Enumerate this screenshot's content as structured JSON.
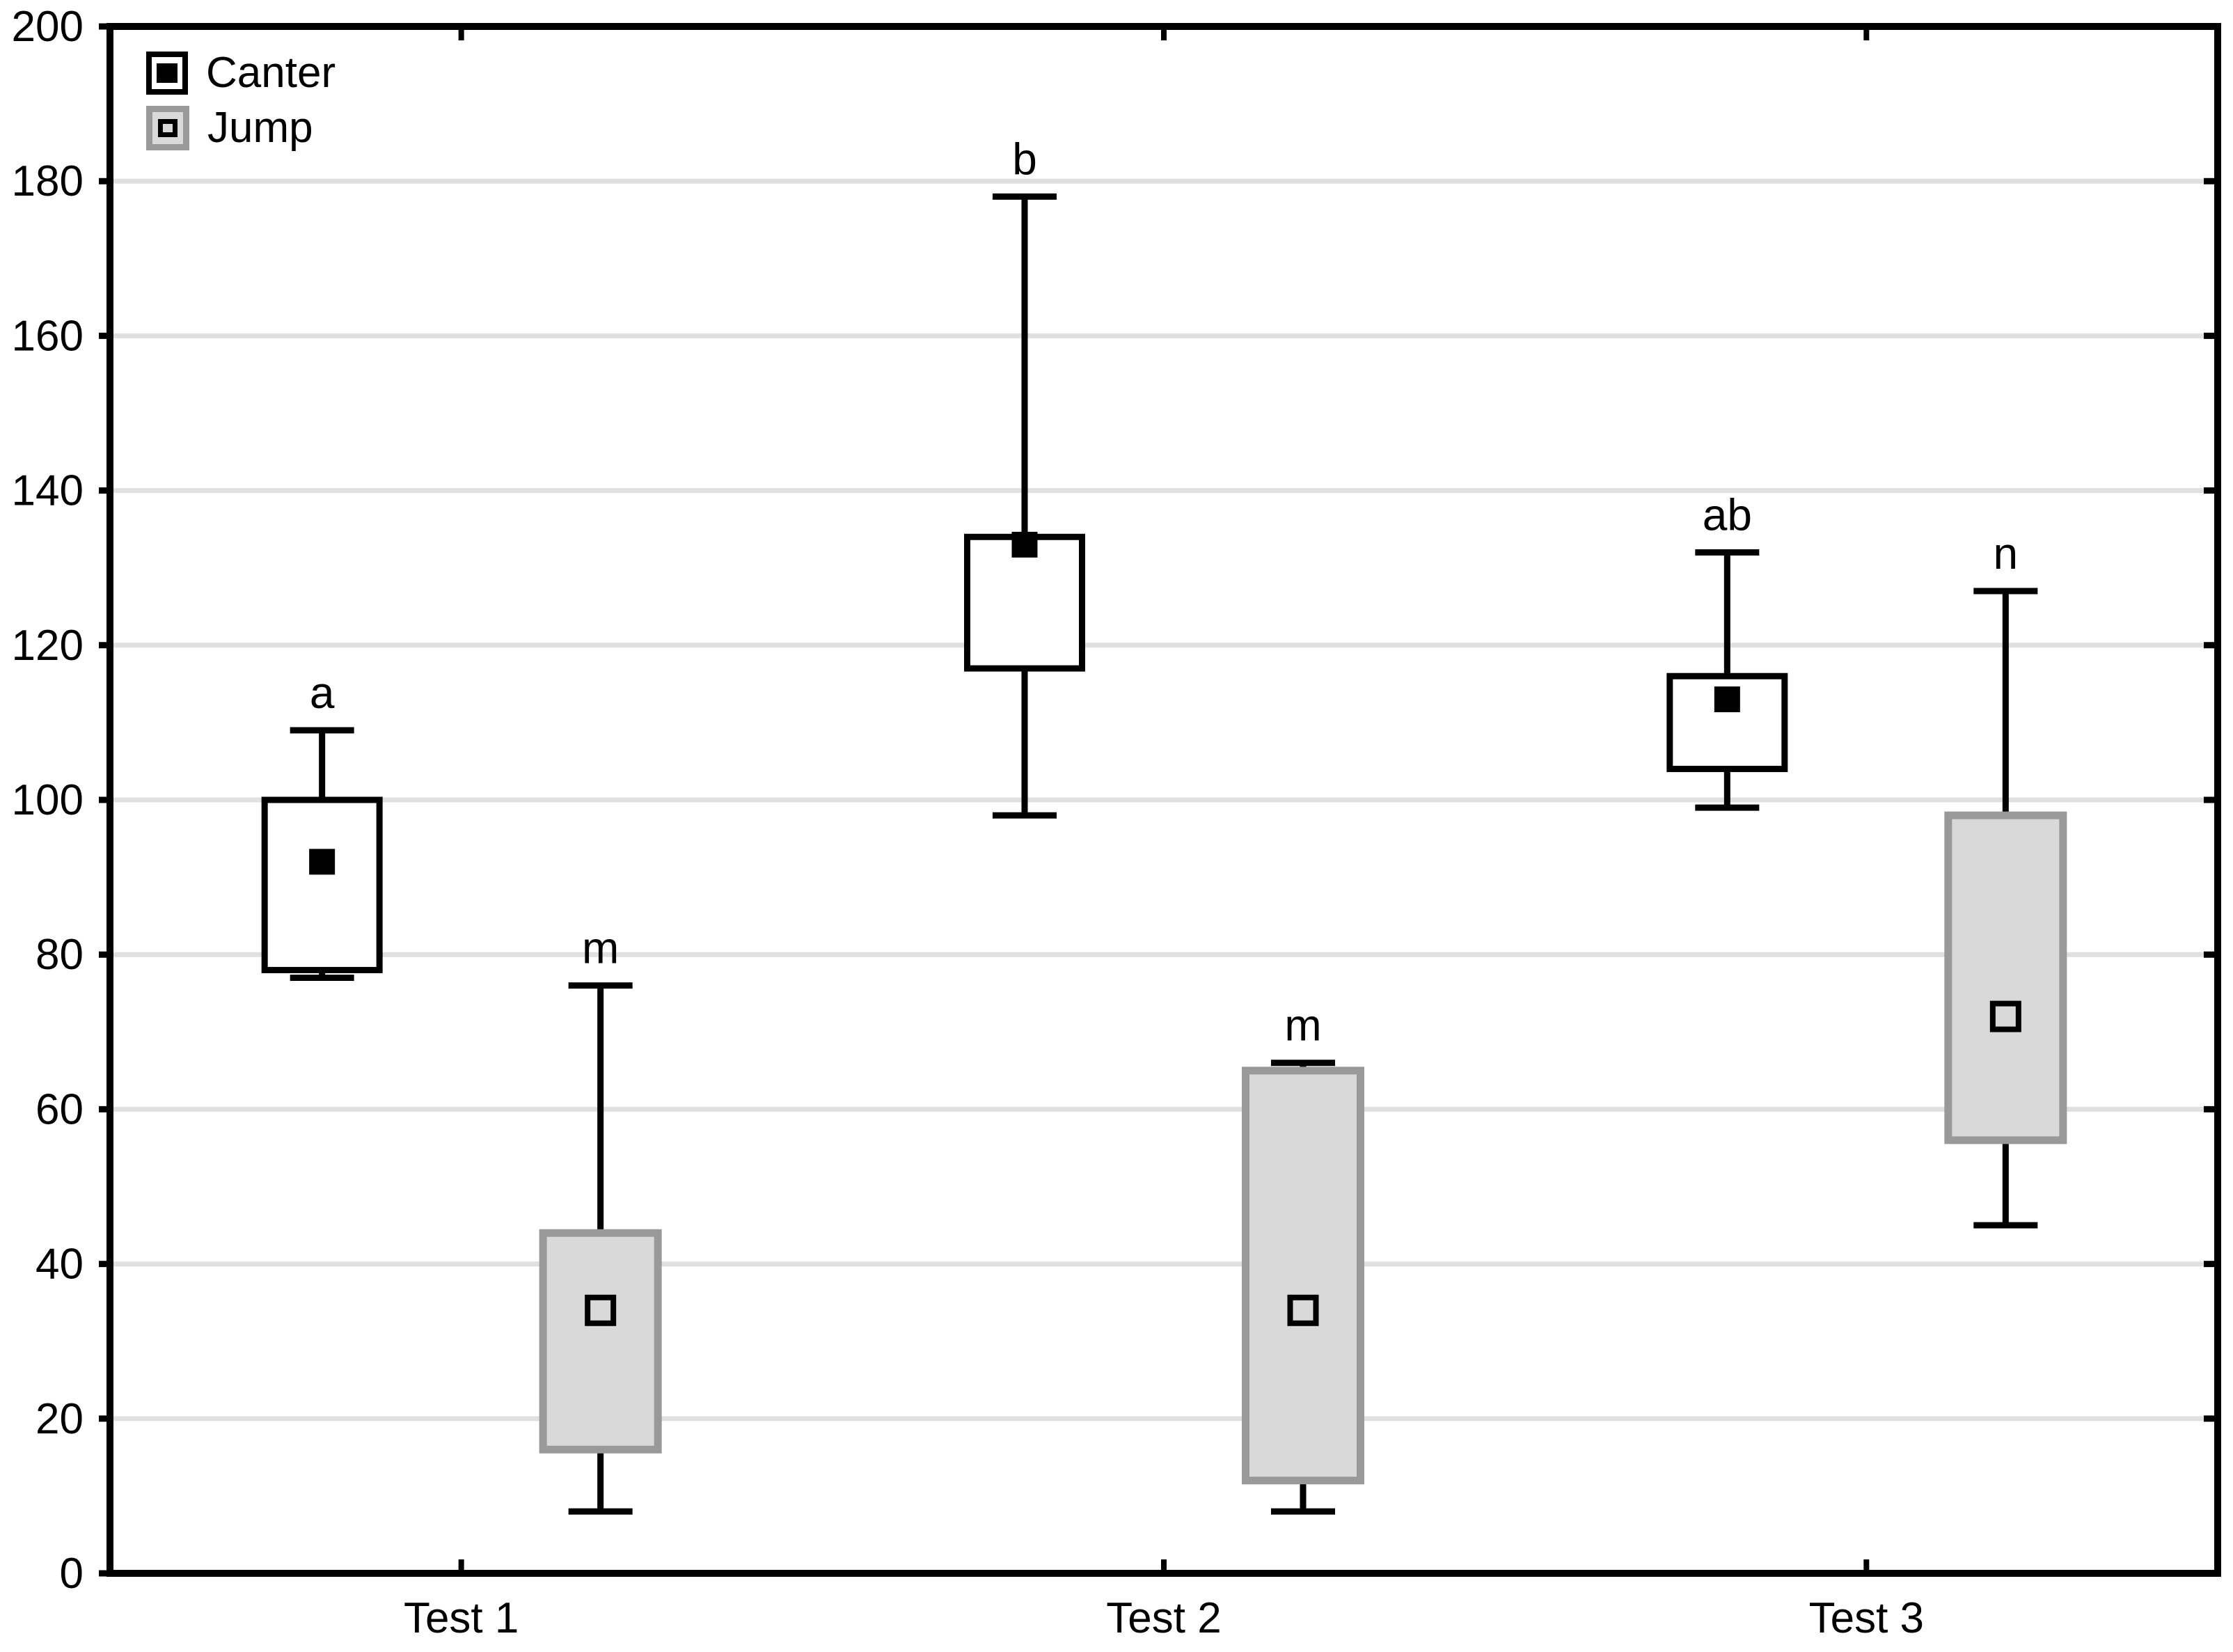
{
  "figure": {
    "background": "#ffffff"
  },
  "legend": {
    "position": "top-left-inside",
    "items": [
      {
        "label": "Canter"
      },
      {
        "label": "Jump"
      }
    ]
  },
  "chart_data": {
    "type": "boxplot",
    "title": "",
    "xlabel": "",
    "ylabel": "",
    "categories": [
      "Test 1",
      "Test 2",
      "Test 3"
    ],
    "y_axis": {
      "min": 0,
      "max": 200,
      "tick_step": 20,
      "tick_labels": [
        "0",
        "20",
        "40",
        "60",
        "80",
        "100",
        "120",
        "140",
        "160",
        "180",
        "200"
      ],
      "gridlines": true
    },
    "legend_entries": [
      "Canter",
      "Jump"
    ],
    "series": [
      {
        "name": "Canter",
        "box_style": {
          "fill": "#ffffff",
          "border": "#000000"
        },
        "marker_style": "filled-black-square",
        "points": [
          {
            "category": "Test 1",
            "whisker_low": 77,
            "q1": 78,
            "mean": 92,
            "q3": 100,
            "whisker_high": 109,
            "sig_label": "a"
          },
          {
            "category": "Test 2",
            "whisker_low": 98,
            "q1": 117,
            "mean": 133,
            "q3": 134,
            "whisker_high": 178,
            "sig_label": "b"
          },
          {
            "category": "Test 3",
            "whisker_low": 99,
            "q1": 104,
            "mean": 113,
            "q3": 116,
            "whisker_high": 132,
            "sig_label": "ab"
          }
        ]
      },
      {
        "name": "Jump",
        "box_style": {
          "fill": "#d9d9d9",
          "border": "#999999"
        },
        "marker_style": "open-square",
        "points": [
          {
            "category": "Test 1",
            "whisker_low": 8,
            "q1": 16,
            "mean": 34,
            "q3": 44,
            "whisker_high": 76,
            "sig_label": "m"
          },
          {
            "category": "Test 2",
            "whisker_low": 8,
            "q1": 12,
            "mean": 34,
            "q3": 65,
            "whisker_high": 66,
            "sig_label": "m"
          },
          {
            "category": "Test 3",
            "whisker_low": 45,
            "q1": 56,
            "mean": 72,
            "q3": 98,
            "whisker_high": 127,
            "sig_label": "n"
          }
        ]
      }
    ],
    "colors": {
      "background": "#ffffff",
      "gridline": "#e0e0e0",
      "axis": "#000000",
      "canter_fill": "#ffffff",
      "canter_border": "#000000",
      "jump_fill": "#d9d9d9",
      "jump_border": "#999999",
      "marker": "#000000"
    }
  }
}
